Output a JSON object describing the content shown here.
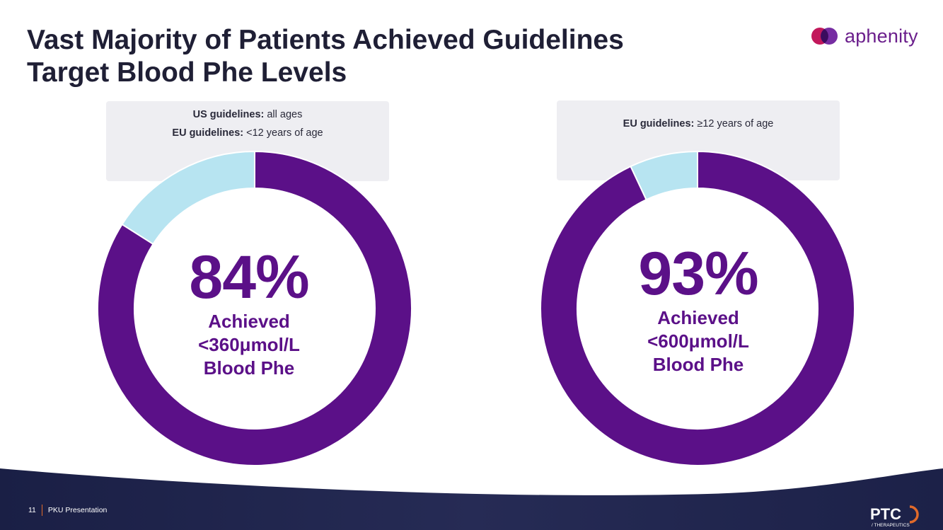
{
  "slide": {
    "title_line1": "Vast Majority of Patients Achieved Guidelines",
    "title_line2": "Target Blood Phe Levels",
    "brand": "aphenity",
    "footer": {
      "page_number": "11",
      "text": "PKU Presentation",
      "company_logo_main": "PTC",
      "company_logo_sub": "/ THERAPEUTICS"
    }
  },
  "guidelines_left": {
    "line1_bold": "US guidelines:",
    "line1_rest": " all ages",
    "line2_bold": "EU guidelines:",
    "line2_rest": " <12 years of age"
  },
  "guidelines_right": {
    "line1_bold": "EU guidelines:",
    "line1_rest": " ≥12 years of age"
  },
  "chart_data": [
    {
      "type": "pie",
      "donut": true,
      "slices": [
        {
          "label": "Achieved <360μmol/L Blood Phe",
          "value": 84,
          "color": "#5b1088"
        },
        {
          "value": 16,
          "color": "#b7e4f1"
        }
      ],
      "center_value": "84%",
      "center_caption": "Achieved\n<360μmol/L\nBlood Phe"
    },
    {
      "type": "pie",
      "donut": true,
      "slices": [
        {
          "label": "Achieved <600μmol/L Blood Phe",
          "value": 93,
          "color": "#5b1088"
        },
        {
          "value": 7,
          "color": "#b7e4f1"
        }
      ],
      "center_value": "93%",
      "center_caption": "Achieved\n<600μmol/L\nBlood Phe"
    }
  ],
  "colors": {
    "primary_purple": "#5b1088",
    "remainder_blue": "#b7e4f1",
    "footer_navy": "#1c2148",
    "accent_orange": "#e06a2a"
  }
}
